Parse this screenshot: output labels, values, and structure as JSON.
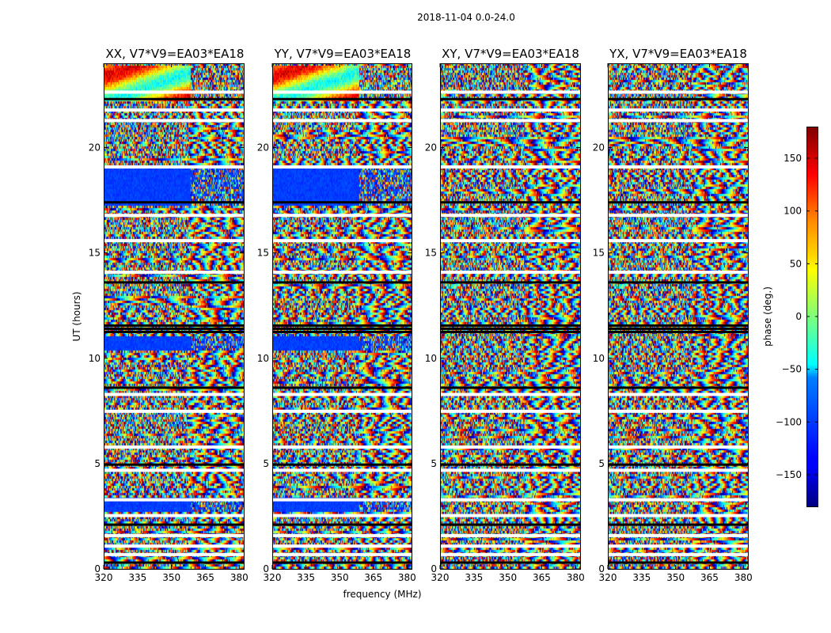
{
  "chart_data": {
    "type": "heatmap",
    "suptitle": "2018-11-04 0.0-24.0",
    "xlabel": "frequency (MHz)",
    "ylabel": "UT (hours)",
    "colorbar_label": "phase (deg.)",
    "colormap": "jet",
    "value_range": [
      -180,
      180
    ],
    "colorbar_ticks": [
      -150,
      -100,
      -50,
      0,
      50,
      100,
      150
    ],
    "colorbar_tick_labels": [
      "−150",
      "−100",
      "−50",
      "0",
      "50",
      "100",
      "150"
    ],
    "xlim": [
      320,
      382
    ],
    "ylim": [
      0,
      24
    ],
    "x_ticks": [
      320,
      335,
      350,
      365,
      380
    ],
    "x_tick_labels": [
      "320",
      "335",
      "350",
      "365",
      "380"
    ],
    "y_ticks": [
      0,
      5,
      10,
      15,
      20
    ],
    "y_tick_labels": [
      "0",
      "5",
      "10",
      "15",
      "20"
    ],
    "panels": [
      {
        "title": "XX, V7*V9=EA03*EA18",
        "pol": "XX"
      },
      {
        "title": "YY, V7*V9=EA03*EA18",
        "pol": "YY"
      },
      {
        "title": "XY, V7*V9=EA03*EA18",
        "pol": "XY"
      },
      {
        "title": "YX, V7*V9=EA03*EA18",
        "pol": "YX"
      }
    ],
    "flagged_ut_hours": [
      0.3,
      0.7,
      1.1,
      1.6,
      2.1,
      2.55,
      3.3,
      4.7,
      4.95,
      5.8,
      7.5,
      8.3,
      8.6,
      11.25,
      11.4,
      11.55,
      13.6,
      14.1,
      15.6,
      16.8,
      17.4,
      19.1,
      21.3,
      21.8,
      22.3,
      22.65
    ]
  },
  "colors": {
    "background": "#ffffff",
    "flag_white": "#ffffff",
    "flag_black": "#000000"
  }
}
